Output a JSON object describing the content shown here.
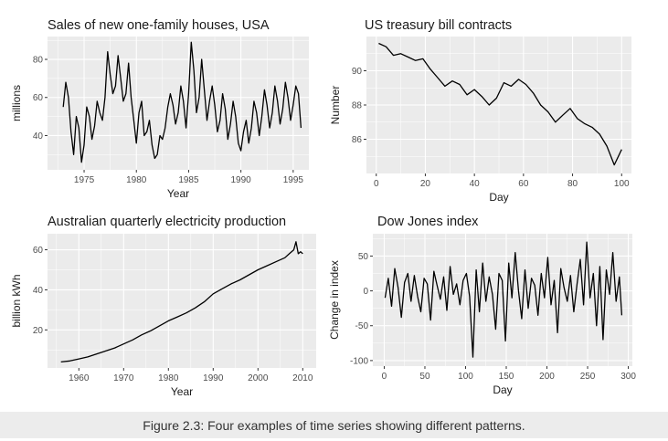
{
  "caption": "Figure 2.3: Four examples of time series showing different patterns.",
  "chart_data": [
    {
      "type": "line",
      "title": "Sales of new one-family houses, USA",
      "xlabel": "Year",
      "ylabel": "millions",
      "xlim": [
        1971.5,
        1996.5
      ],
      "ylim": [
        22,
        92
      ],
      "xticks": [
        1975,
        1980,
        1985,
        1990,
        1995
      ],
      "yticks": [
        40,
        60,
        80
      ],
      "grid": true,
      "x": [
        1973.0,
        1973.25,
        1973.5,
        1973.75,
        1974.0,
        1974.25,
        1974.5,
        1974.75,
        1975.0,
        1975.25,
        1975.5,
        1975.75,
        1976.0,
        1976.25,
        1976.5,
        1976.75,
        1977.0,
        1977.25,
        1977.5,
        1977.75,
        1978.0,
        1978.25,
        1978.5,
        1978.75,
        1979.0,
        1979.25,
        1979.5,
        1979.75,
        1980.0,
        1980.25,
        1980.5,
        1980.75,
        1981.0,
        1981.25,
        1981.5,
        1981.75,
        1982.0,
        1982.25,
        1982.5,
        1982.75,
        1983.0,
        1983.25,
        1983.5,
        1983.75,
        1984.0,
        1984.25,
        1984.5,
        1984.75,
        1985.0,
        1985.25,
        1985.5,
        1985.75,
        1986.0,
        1986.25,
        1986.5,
        1986.75,
        1987.0,
        1987.25,
        1987.5,
        1987.75,
        1988.0,
        1988.25,
        1988.5,
        1988.75,
        1989.0,
        1989.25,
        1989.5,
        1989.75,
        1990.0,
        1990.25,
        1990.5,
        1990.75,
        1991.0,
        1991.25,
        1991.5,
        1991.75,
        1992.0,
        1992.25,
        1992.5,
        1992.75,
        1993.0,
        1993.25,
        1993.5,
        1993.75,
        1994.0,
        1994.25,
        1994.5,
        1994.75,
        1995.0,
        1995.25,
        1995.5,
        1995.75
      ],
      "values": [
        55,
        68,
        60,
        42,
        30,
        50,
        44,
        26,
        35,
        55,
        50,
        38,
        45,
        58,
        52,
        48,
        60,
        84,
        72,
        62,
        66,
        82,
        70,
        58,
        62,
        78,
        60,
        48,
        36,
        52,
        58,
        40,
        42,
        48,
        35,
        28,
        30,
        40,
        38,
        44,
        55,
        62,
        56,
        46,
        52,
        66,
        58,
        44,
        62,
        89,
        74,
        52,
        60,
        80,
        64,
        48,
        58,
        66,
        56,
        42,
        48,
        62,
        54,
        38,
        46,
        58,
        50,
        36,
        32,
        42,
        48,
        36,
        44,
        58,
        52,
        40,
        50,
        64,
        56,
        44,
        52,
        66,
        58,
        46,
        54,
        68,
        60,
        48,
        56,
        66,
        62,
        44
      ]
    },
    {
      "type": "line",
      "title": "US treasury bill contracts",
      "xlabel": "Day",
      "ylabel": "Number",
      "xlim": [
        -4,
        104
      ],
      "ylim": [
        84.0,
        92.0
      ],
      "xticks": [
        0,
        20,
        40,
        60,
        80,
        100
      ],
      "yticks": [
        86,
        88,
        90
      ],
      "grid": true,
      "x": [
        1,
        4,
        7,
        10,
        13,
        16,
        19,
        22,
        25,
        28,
        31,
        34,
        37,
        40,
        43,
        46,
        49,
        52,
        55,
        58,
        61,
        64,
        67,
        70,
        73,
        76,
        79,
        82,
        85,
        88,
        91,
        94,
        97,
        100
      ],
      "values": [
        91.6,
        91.4,
        90.9,
        91.0,
        90.8,
        90.6,
        90.7,
        90.1,
        89.6,
        89.1,
        89.4,
        89.2,
        88.6,
        88.9,
        88.5,
        88.0,
        88.4,
        89.3,
        89.1,
        89.5,
        89.2,
        88.7,
        88.0,
        87.6,
        87.0,
        87.4,
        87.8,
        87.2,
        86.9,
        86.7,
        86.3,
        85.6,
        84.5,
        85.4
      ]
    },
    {
      "type": "line",
      "title": "Australian quarterly electricity production",
      "xlabel": "Year",
      "ylabel": "billion kWh",
      "xlim": [
        1953,
        2013
      ],
      "ylim": [
        1,
        68
      ],
      "xticks": [
        1960,
        1970,
        1980,
        1990,
        2000,
        2010
      ],
      "yticks": [
        20,
        40,
        60
      ],
      "grid": true,
      "x": [
        1956,
        1958,
        1960,
        1962,
        1964,
        1966,
        1968,
        1970,
        1972,
        1974,
        1976,
        1978,
        1980,
        1982,
        1984,
        1986,
        1988,
        1990,
        1992,
        1994,
        1996,
        1998,
        2000,
        2002,
        2004,
        2006,
        2007,
        2008,
        2008.5,
        2009,
        2009.5,
        2010
      ],
      "values": [
        4,
        4.5,
        5.5,
        6.5,
        8,
        9.5,
        11,
        13,
        15,
        17.5,
        19.5,
        22,
        24.5,
        26.5,
        28.5,
        31,
        34,
        38,
        40.5,
        43,
        45,
        47.5,
        50,
        52,
        54,
        56,
        58,
        60,
        64,
        58,
        59,
        58
      ]
    },
    {
      "type": "line",
      "title": "Dow Jones index",
      "xlabel": "Day",
      "ylabel": "Change in index",
      "xlim": [
        -14,
        305
      ],
      "ylim": [
        -108,
        82
      ],
      "xticks": [
        0,
        50,
        100,
        150,
        200,
        250,
        300
      ],
      "yticks": [
        -100,
        -50,
        0,
        50
      ],
      "grid": true,
      "x": [
        1,
        5,
        9,
        13,
        17,
        21,
        25,
        29,
        33,
        37,
        41,
        45,
        49,
        53,
        57,
        61,
        65,
        69,
        73,
        77,
        81,
        85,
        89,
        93,
        97,
        101,
        105,
        109,
        113,
        117,
        121,
        125,
        129,
        133,
        137,
        141,
        145,
        149,
        153,
        157,
        161,
        165,
        169,
        173,
        177,
        181,
        185,
        189,
        193,
        197,
        201,
        205,
        209,
        213,
        217,
        221,
        225,
        229,
        233,
        237,
        241,
        245,
        249,
        253,
        257,
        261,
        265,
        269,
        273,
        277,
        281,
        285,
        289,
        292
      ],
      "values": [
        -10,
        18,
        -22,
        32,
        5,
        -38,
        12,
        25,
        -15,
        22,
        -8,
        -30,
        18,
        10,
        -42,
        28,
        8,
        -12,
        20,
        -28,
        35,
        -5,
        10,
        -20,
        15,
        25,
        -8,
        -95,
        30,
        -30,
        40,
        -15,
        20,
        -5,
        -55,
        25,
        15,
        -72,
        40,
        -10,
        55,
        0,
        -40,
        30,
        -25,
        18,
        8,
        -35,
        25,
        -10,
        48,
        -20,
        15,
        -60,
        32,
        5,
        -15,
        22,
        -30,
        10,
        45,
        -20,
        70,
        -10,
        25,
        -50,
        35,
        -70,
        30,
        -5,
        55,
        -15,
        20,
        -35
      ]
    }
  ]
}
